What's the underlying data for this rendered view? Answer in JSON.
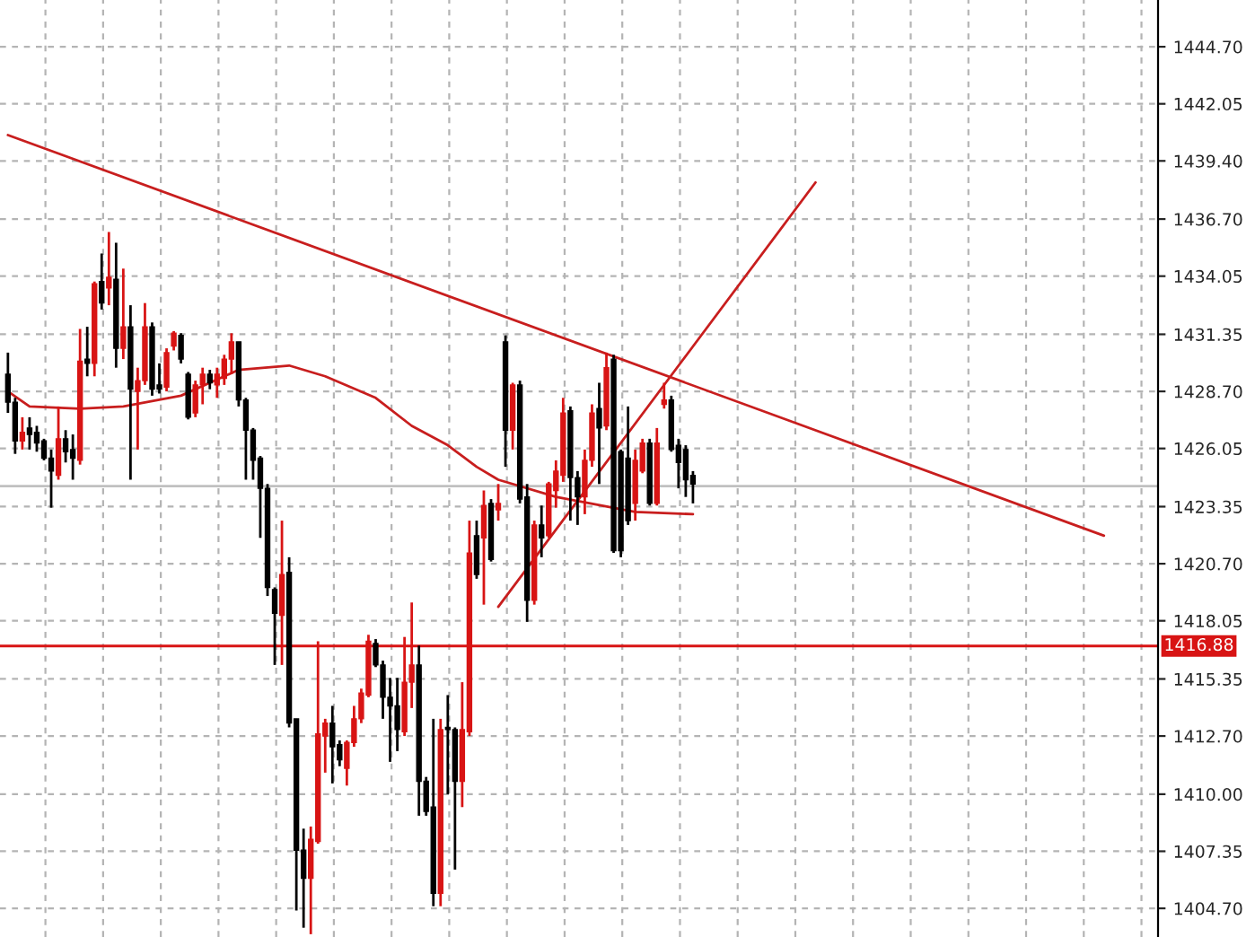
{
  "chart_data": {
    "type": "candlestick",
    "categories": [
      null,
      null,
      null,
      null,
      null,
      null,
      null,
      null,
      null,
      null,
      null,
      null,
      null,
      null,
      null,
      null,
      null,
      null,
      null,
      null,
      null,
      null,
      null,
      null,
      null,
      null,
      null,
      null,
      null,
      null,
      null,
      null,
      null,
      null,
      null,
      null,
      null,
      null,
      null,
      null,
      null,
      null,
      null,
      null,
      null,
      null,
      null,
      null,
      null,
      null,
      null,
      null,
      null,
      null,
      null,
      null,
      null,
      null,
      null,
      null,
      null,
      null,
      null,
      null,
      null,
      null,
      null,
      null,
      null,
      null,
      null,
      null,
      null,
      null,
      null,
      null,
      null,
      null,
      null,
      null,
      null,
      null,
      null,
      null,
      null,
      null,
      null,
      null,
      null,
      null,
      null,
      null,
      null,
      null,
      null,
      null,
      null,
      null,
      null,
      null,
      null,
      null,
      null,
      null,
      null,
      null,
      null,
      null,
      null,
      null,
      null,
      null,
      null,
      null,
      null,
      null,
      null,
      null,
      null,
      null,
      null,
      null,
      null,
      null,
      null,
      null,
      null,
      null,
      null,
      null,
      null,
      null,
      null,
      null,
      null,
      null,
      null,
      null,
      null,
      null,
      null,
      null,
      null,
      null,
      null,
      null,
      null,
      null,
      null,
      null,
      null,
      null,
      null
    ],
    "ohlc": [
      [
        1429.5,
        1430.5,
        1427.7,
        1428.2
      ],
      [
        1428.2,
        1428.4,
        1425.8,
        1426.4
      ],
      [
        1426.4,
        1427.5,
        1426.0,
        1426.8
      ],
      [
        1427.0,
        1427.5,
        1426.0,
        1426.7
      ],
      [
        1426.8,
        1427.1,
        1425.9,
        1426.3
      ],
      [
        1426.4,
        1426.5,
        1425.5,
        1425.6
      ],
      [
        1425.6,
        1426.0,
        1423.3,
        1425.0
      ],
      [
        1424.8,
        1428.0,
        1424.6,
        1426.5
      ],
      [
        1426.5,
        1426.9,
        1425.4,
        1425.9
      ],
      [
        1426.0,
        1426.7,
        1424.6,
        1425.6
      ],
      [
        1425.5,
        1431.6,
        1425.3,
        1430.1
      ],
      [
        1430.2,
        1431.7,
        1429.4,
        1430.0
      ],
      [
        1430.0,
        1433.8,
        1429.4,
        1433.7
      ],
      [
        1433.8,
        1435.1,
        1432.5,
        1432.8
      ],
      [
        1433.5,
        1436.1,
        1432.7,
        1434.0
      ],
      [
        1433.9,
        1435.6,
        1429.8,
        1430.7
      ],
      [
        1430.7,
        1434.4,
        1430.2,
        1431.7
      ],
      [
        1431.7,
        1432.7,
        1424.6,
        1428.8
      ],
      [
        1428.7,
        1429.8,
        1426.0,
        1429.2
      ],
      [
        1429.2,
        1432.8,
        1429.0,
        1431.7
      ],
      [
        1431.7,
        1431.9,
        1428.5,
        1428.8
      ],
      [
        1429.0,
        1430.0,
        1428.6,
        1428.8
      ],
      [
        1428.9,
        1430.7,
        1428.7,
        1430.5
      ],
      [
        1430.8,
        1431.5,
        1430.6,
        1431.4
      ],
      [
        1431.3,
        1431.4,
        1430.0,
        1430.2
      ],
      [
        1429.5,
        1429.6,
        1427.4,
        1427.5
      ],
      [
        1427.7,
        1429.2,
        1427.5,
        1429.0
      ],
      [
        1429.0,
        1429.8,
        1428.1,
        1429.5
      ],
      [
        1429.5,
        1429.7,
        1428.8,
        1429.1
      ],
      [
        1429.0,
        1429.8,
        1428.4,
        1429.5
      ],
      [
        1429.3,
        1430.4,
        1429.0,
        1430.2
      ],
      [
        1430.2,
        1431.4,
        1429.5,
        1431.0
      ],
      [
        1431.0,
        1431.0,
        1428.0,
        1428.3
      ],
      [
        1428.3,
        1428.4,
        1424.6,
        1426.9
      ],
      [
        1426.9,
        1427.0,
        1424.6,
        1425.5
      ],
      [
        1425.6,
        1425.7,
        1421.9,
        1424.2
      ],
      [
        1424.2,
        1424.4,
        1419.2,
        1419.6
      ],
      [
        1419.5,
        1419.6,
        1416.0,
        1418.4
      ],
      [
        1418.3,
        1422.7,
        1416.0,
        1420.2
      ],
      [
        1420.3,
        1421.0,
        1413.1,
        1413.3
      ],
      [
        1413.5,
        1413.5,
        1404.6,
        1407.4
      ],
      [
        1407.4,
        1408.4,
        1403.8,
        1406.1
      ],
      [
        1406.1,
        1408.5,
        1403.5,
        1407.9
      ],
      [
        1407.8,
        1417.1,
        1407.7,
        1412.8
      ],
      [
        1412.7,
        1413.5,
        1411.0,
        1413.3
      ],
      [
        1413.3,
        1414.1,
        1410.5,
        1412.2
      ],
      [
        1412.3,
        1412.5,
        1411.3,
        1411.6
      ],
      [
        1411.2,
        1412.5,
        1410.4,
        1412.4
      ],
      [
        1412.4,
        1414.1,
        1412.2,
        1413.5
      ],
      [
        1413.5,
        1414.9,
        1413.3,
        1414.7
      ],
      [
        1414.6,
        1417.4,
        1414.5,
        1417.1
      ],
      [
        1417.0,
        1417.2,
        1415.9,
        1416.0
      ],
      [
        1416.0,
        1416.2,
        1413.5,
        1414.5
      ],
      [
        1414.5,
        1415.4,
        1411.5,
        1414.1
      ],
      [
        1414.1,
        1415.4,
        1412.0,
        1413.0
      ],
      [
        1412.9,
        1417.3,
        1412.7,
        1415.2
      ],
      [
        1415.2,
        1418.9,
        1414.0,
        1416.0
      ],
      [
        1416.0,
        1416.9,
        1409.0,
        1410.6
      ],
      [
        1410.6,
        1410.8,
        1409.0,
        1409.2
      ],
      [
        1409.4,
        1413.5,
        1404.8,
        1405.4
      ],
      [
        1405.4,
        1413.5,
        1404.8,
        1413.0
      ],
      [
        1413.1,
        1414.6,
        1410.0,
        1413.0
      ],
      [
        1413.0,
        1413.1,
        1406.5,
        1410.6
      ],
      [
        1410.6,
        1415.2,
        1409.4,
        1413.0
      ],
      [
        1412.9,
        1422.7,
        1412.7,
        1421.2
      ],
      [
        1422.0,
        1422.7,
        1420.0,
        1420.2
      ],
      [
        1421.9,
        1424.1,
        1418.8,
        1423.4
      ],
      [
        1423.5,
        1423.7,
        1420.8,
        1420.9
      ],
      [
        1423.2,
        1424.4,
        1422.7,
        1423.5
      ],
      [
        1431.0,
        1431.3,
        1425.2,
        1426.9
      ],
      [
        1426.9,
        1429.1,
        1426.0,
        1429.0
      ],
      [
        1429.0,
        1429.2,
        1423.5,
        1423.7
      ],
      [
        1423.8,
        1424.4,
        1418.0,
        1419.0
      ],
      [
        1419.0,
        1422.7,
        1418.8,
        1422.5
      ],
      [
        1422.5,
        1423.4,
        1421.0,
        1421.9
      ],
      [
        1422.0,
        1424.5,
        1421.9,
        1424.4
      ],
      [
        1424.1,
        1425.5,
        1423.3,
        1425.0
      ],
      [
        1424.8,
        1428.4,
        1424.5,
        1427.7
      ],
      [
        1427.8,
        1428.0,
        1422.7,
        1424.7
      ],
      [
        1424.7,
        1425.0,
        1422.5,
        1423.8
      ],
      [
        1423.8,
        1426.0,
        1423.0,
        1425.5
      ],
      [
        1425.5,
        1428.1,
        1425.2,
        1427.7
      ],
      [
        1427.9,
        1429.1,
        1424.4,
        1427.0
      ],
      [
        1427.1,
        1430.5,
        1426.9,
        1429.8
      ],
      [
        1430.2,
        1430.4,
        1421.2,
        1421.3
      ],
      [
        1425.9,
        1426.0,
        1421.0,
        1421.3
      ],
      [
        1425.6,
        1428.0,
        1422.5,
        1422.7
      ],
      [
        1423.5,
        1426.0,
        1422.7,
        1425.5
      ],
      [
        1425.0,
        1426.5,
        1424.9,
        1426.3
      ],
      [
        1426.3,
        1426.5,
        1423.4,
        1423.5
      ],
      [
        1423.5,
        1427.0,
        1423.4,
        1426.3
      ],
      [
        1428.1,
        1429.1,
        1427.9,
        1428.3
      ],
      [
        1428.3,
        1428.5,
        1425.9,
        1426.0
      ],
      [
        1426.2,
        1426.5,
        1424.2,
        1425.4
      ],
      [
        1426.0,
        1426.2,
        1423.8,
        1424.6
      ],
      [
        1424.8,
        1425.0,
        1423.5,
        1424.4
      ],
      null,
      null,
      null,
      null,
      null,
      null,
      null,
      null,
      null,
      null,
      null,
      null,
      null,
      null,
      null,
      null,
      null,
      null,
      null,
      null,
      null,
      null,
      null,
      null,
      null,
      null,
      null,
      null,
      null,
      null,
      null,
      null,
      null,
      null,
      null,
      null,
      null,
      null,
      null,
      null,
      null,
      null,
      null,
      null,
      null,
      null,
      null,
      null,
      null,
      null,
      null,
      null,
      null,
      null,
      null,
      null,
      null
    ],
    "colors": [
      "#000000",
      "#000000",
      "#d81414",
      "#000000",
      "#000000",
      "#000000",
      "#000000",
      "#d81414",
      "#000000",
      "#000000",
      "#d81414",
      "#000000",
      "#d81414",
      "#000000",
      "#d81414",
      "#000000",
      "#d81414",
      "#000000",
      "#d81414",
      "#d81414",
      "#000000",
      "#000000",
      "#d81414",
      "#d81414",
      "#000000",
      "#000000",
      "#d81414",
      "#d81414",
      "#000000",
      "#d81414",
      "#d81414",
      "#d81414",
      "#000000",
      "#000000",
      "#000000",
      "#000000",
      "#000000",
      "#000000",
      "#d81414",
      "#000000",
      "#000000",
      "#000000",
      "#d81414",
      "#d81414",
      "#d81414",
      "#000000",
      "#000000",
      "#d81414",
      "#d81414",
      "#d81414",
      "#d81414",
      "#000000",
      "#000000",
      "#000000",
      "#000000",
      "#d81414",
      "#d81414",
      "#000000",
      "#000000",
      "#000000",
      "#d81414",
      "#000000",
      "#000000",
      "#d81414",
      "#d81414",
      "#000000",
      "#d81414",
      "#000000",
      "#d81414",
      "#000000",
      "#d81414",
      "#000000",
      "#000000",
      "#d81414",
      "#000000",
      "#d81414",
      "#d81414",
      "#d81414",
      "#000000",
      "#000000",
      "#d81414",
      "#d81414",
      "#000000",
      "#d81414",
      "#000000",
      "#000000",
      "#000000",
      "#d81414",
      "#d81414",
      "#000000",
      "#d81414",
      "#d81414",
      "#000000",
      "#000000",
      "#000000",
      "#000000",
      null,
      null,
      null,
      null,
      null,
      null,
      null,
      null,
      null,
      null,
      null,
      null,
      null,
      null,
      null,
      null,
      null,
      null,
      null,
      null,
      null,
      null,
      null,
      null,
      null,
      null,
      null,
      null,
      null,
      null,
      null,
      null,
      null,
      null,
      null,
      null,
      null,
      null,
      null,
      null,
      null,
      null,
      null,
      null,
      null,
      null,
      null,
      null,
      null,
      null,
      null,
      null,
      null,
      null,
      null,
      null,
      null
    ],
    "series": [
      {
        "type": "line",
        "color": "#c81e1e",
        "values": [
          1428.7,
          null,
          null,
          1428.0,
          null,
          null,
          null,
          null,
          null,
          null,
          1427.9,
          null,
          null,
          null,
          null,
          null,
          1428.0,
          null,
          null,
          null,
          null,
          null,
          null,
          null,
          1428.5,
          null,
          null,
          null,
          null,
          null,
          null,
          null,
          1429.7,
          null,
          null,
          null,
          null,
          null,
          null,
          1429.9,
          null,
          null,
          null,
          null,
          1429.4,
          null,
          null,
          null,
          null,
          null,
          null,
          1428.4,
          null,
          null,
          null,
          null,
          1427.1,
          null,
          null,
          null,
          null,
          1426.2,
          null,
          null,
          null,
          1425.2,
          null,
          null,
          1424.6,
          null,
          1424.4,
          null,
          null,
          null,
          null,
          null,
          1423.8,
          null,
          null,
          null,
          null,
          null,
          null,
          null,
          null,
          null,
          null,
          1423.1,
          null,
          null,
          null,
          null,
          null,
          null,
          null,
          1423.0,
          null,
          null,
          null,
          null,
          null,
          null,
          null,
          null,
          null,
          null,
          null,
          null,
          null,
          null,
          null,
          null,
          null,
          null,
          null,
          null,
          null,
          null,
          null,
          null,
          null,
          null,
          null,
          null,
          null,
          null,
          null,
          null,
          null,
          null,
          null,
          null,
          null,
          null,
          null,
          null,
          null,
          null,
          null,
          null,
          null,
          null,
          null,
          null,
          null,
          null,
          null,
          null,
          null,
          null,
          null,
          null,
          null
        ]
      },
      {
        "type": "line",
        "color": "#c81e1e",
        "values": [
          1440.6,
          null,
          null,
          null,
          null,
          null,
          null,
          null,
          null,
          null,
          null,
          null,
          null,
          null,
          null,
          null,
          null,
          null,
          null,
          null,
          null,
          null,
          null,
          null,
          null,
          null,
          null,
          null,
          null,
          null,
          null,
          null,
          null,
          null,
          null,
          null,
          null,
          null,
          null,
          null,
          null,
          null,
          null,
          null,
          null,
          null,
          null,
          null,
          null,
          null,
          null,
          null,
          null,
          null,
          null,
          null,
          null,
          null,
          null,
          null,
          null,
          null,
          null,
          null,
          null,
          null,
          null,
          null,
          null,
          null,
          null,
          null,
          null,
          null,
          null,
          null,
          null,
          null,
          null,
          null,
          null,
          null,
          null,
          null,
          null,
          null,
          null,
          null,
          null,
          null,
          null,
          null,
          null,
          null,
          null,
          null,
          null,
          null,
          null,
          null,
          null,
          null,
          null,
          null,
          null,
          null,
          null,
          null,
          null,
          null,
          null,
          null,
          null,
          null,
          null,
          null,
          null,
          null,
          null,
          null,
          null,
          null,
          null,
          null,
          null,
          null,
          null,
          null,
          null,
          null,
          null,
          null,
          null,
          null,
          null,
          null,
          null,
          null,
          null,
          null,
          null,
          null,
          null,
          null,
          null,
          null,
          null,
          null,
          null,
          null,
          null,
          null,
          1422.0
        ]
      },
      {
        "type": "line",
        "color": "#c81e1e",
        "values": [
          null,
          null,
          null,
          null,
          null,
          null,
          null,
          null,
          null,
          null,
          null,
          null,
          null,
          null,
          null,
          null,
          null,
          null,
          null,
          null,
          null,
          null,
          null,
          null,
          null,
          null,
          null,
          null,
          null,
          null,
          null,
          null,
          null,
          null,
          null,
          null,
          null,
          null,
          null,
          null,
          null,
          null,
          null,
          null,
          null,
          null,
          null,
          null,
          null,
          null,
          null,
          null,
          null,
          null,
          null,
          null,
          null,
          null,
          null,
          null,
          null,
          null,
          null,
          null,
          null,
          null,
          null,
          null,
          1418.7,
          null,
          null,
          null,
          null,
          null,
          null,
          null,
          null,
          null,
          null,
          null,
          null,
          null,
          null,
          null,
          null,
          null,
          null,
          null,
          null,
          null,
          null,
          null,
          null,
          null,
          null,
          null,
          null,
          null,
          null,
          null,
          null,
          null,
          null,
          null,
          null,
          null,
          null,
          null,
          null,
          null,
          null,
          null,
          1438.4,
          null,
          null,
          null,
          null,
          null,
          null,
          null,
          null,
          null,
          null,
          null,
          null,
          null,
          null,
          null,
          null,
          null,
          null,
          null,
          null,
          null,
          null,
          null,
          null,
          null,
          null,
          null,
          null,
          null,
          null,
          null,
          null,
          null,
          null,
          null,
          null,
          null,
          null,
          null,
          null
        ]
      }
    ],
    "ref_lines": [
      {
        "axis": "y",
        "value": 1416.88,
        "label": "1416.88",
        "color": "#d81414"
      },
      {
        "axis": "y",
        "value": 1424.3,
        "color": "#c0c0c0"
      }
    ],
    "ylim": [
      1403.37,
      1446.87
    ],
    "yticks": [
      {
        "value": 1404.7,
        "label": "1404.70"
      },
      {
        "value": 1407.35,
        "label": "1407.35"
      },
      {
        "value": 1410.0,
        "label": "1410.00"
      },
      {
        "value": 1412.7,
        "label": "1412.70"
      },
      {
        "value": 1415.35,
        "label": "1415.35"
      },
      {
        "value": 1418.05,
        "label": "1418.05"
      },
      {
        "value": 1420.7,
        "label": "1420.70"
      },
      {
        "value": 1423.35,
        "label": "1423.35"
      },
      {
        "value": 1426.05,
        "label": "1426.05"
      },
      {
        "value": 1428.7,
        "label": "1428.70"
      },
      {
        "value": 1431.35,
        "label": "1431.35"
      },
      {
        "value": 1434.05,
        "label": "1434.05"
      },
      {
        "value": 1436.7,
        "label": "1436.70"
      },
      {
        "value": 1439.4,
        "label": "1439.40"
      },
      {
        "value": 1442.05,
        "label": "1442.05"
      },
      {
        "value": 1444.7,
        "label": "1444.70"
      }
    ],
    "grid": true,
    "tick_labels": "y"
  }
}
